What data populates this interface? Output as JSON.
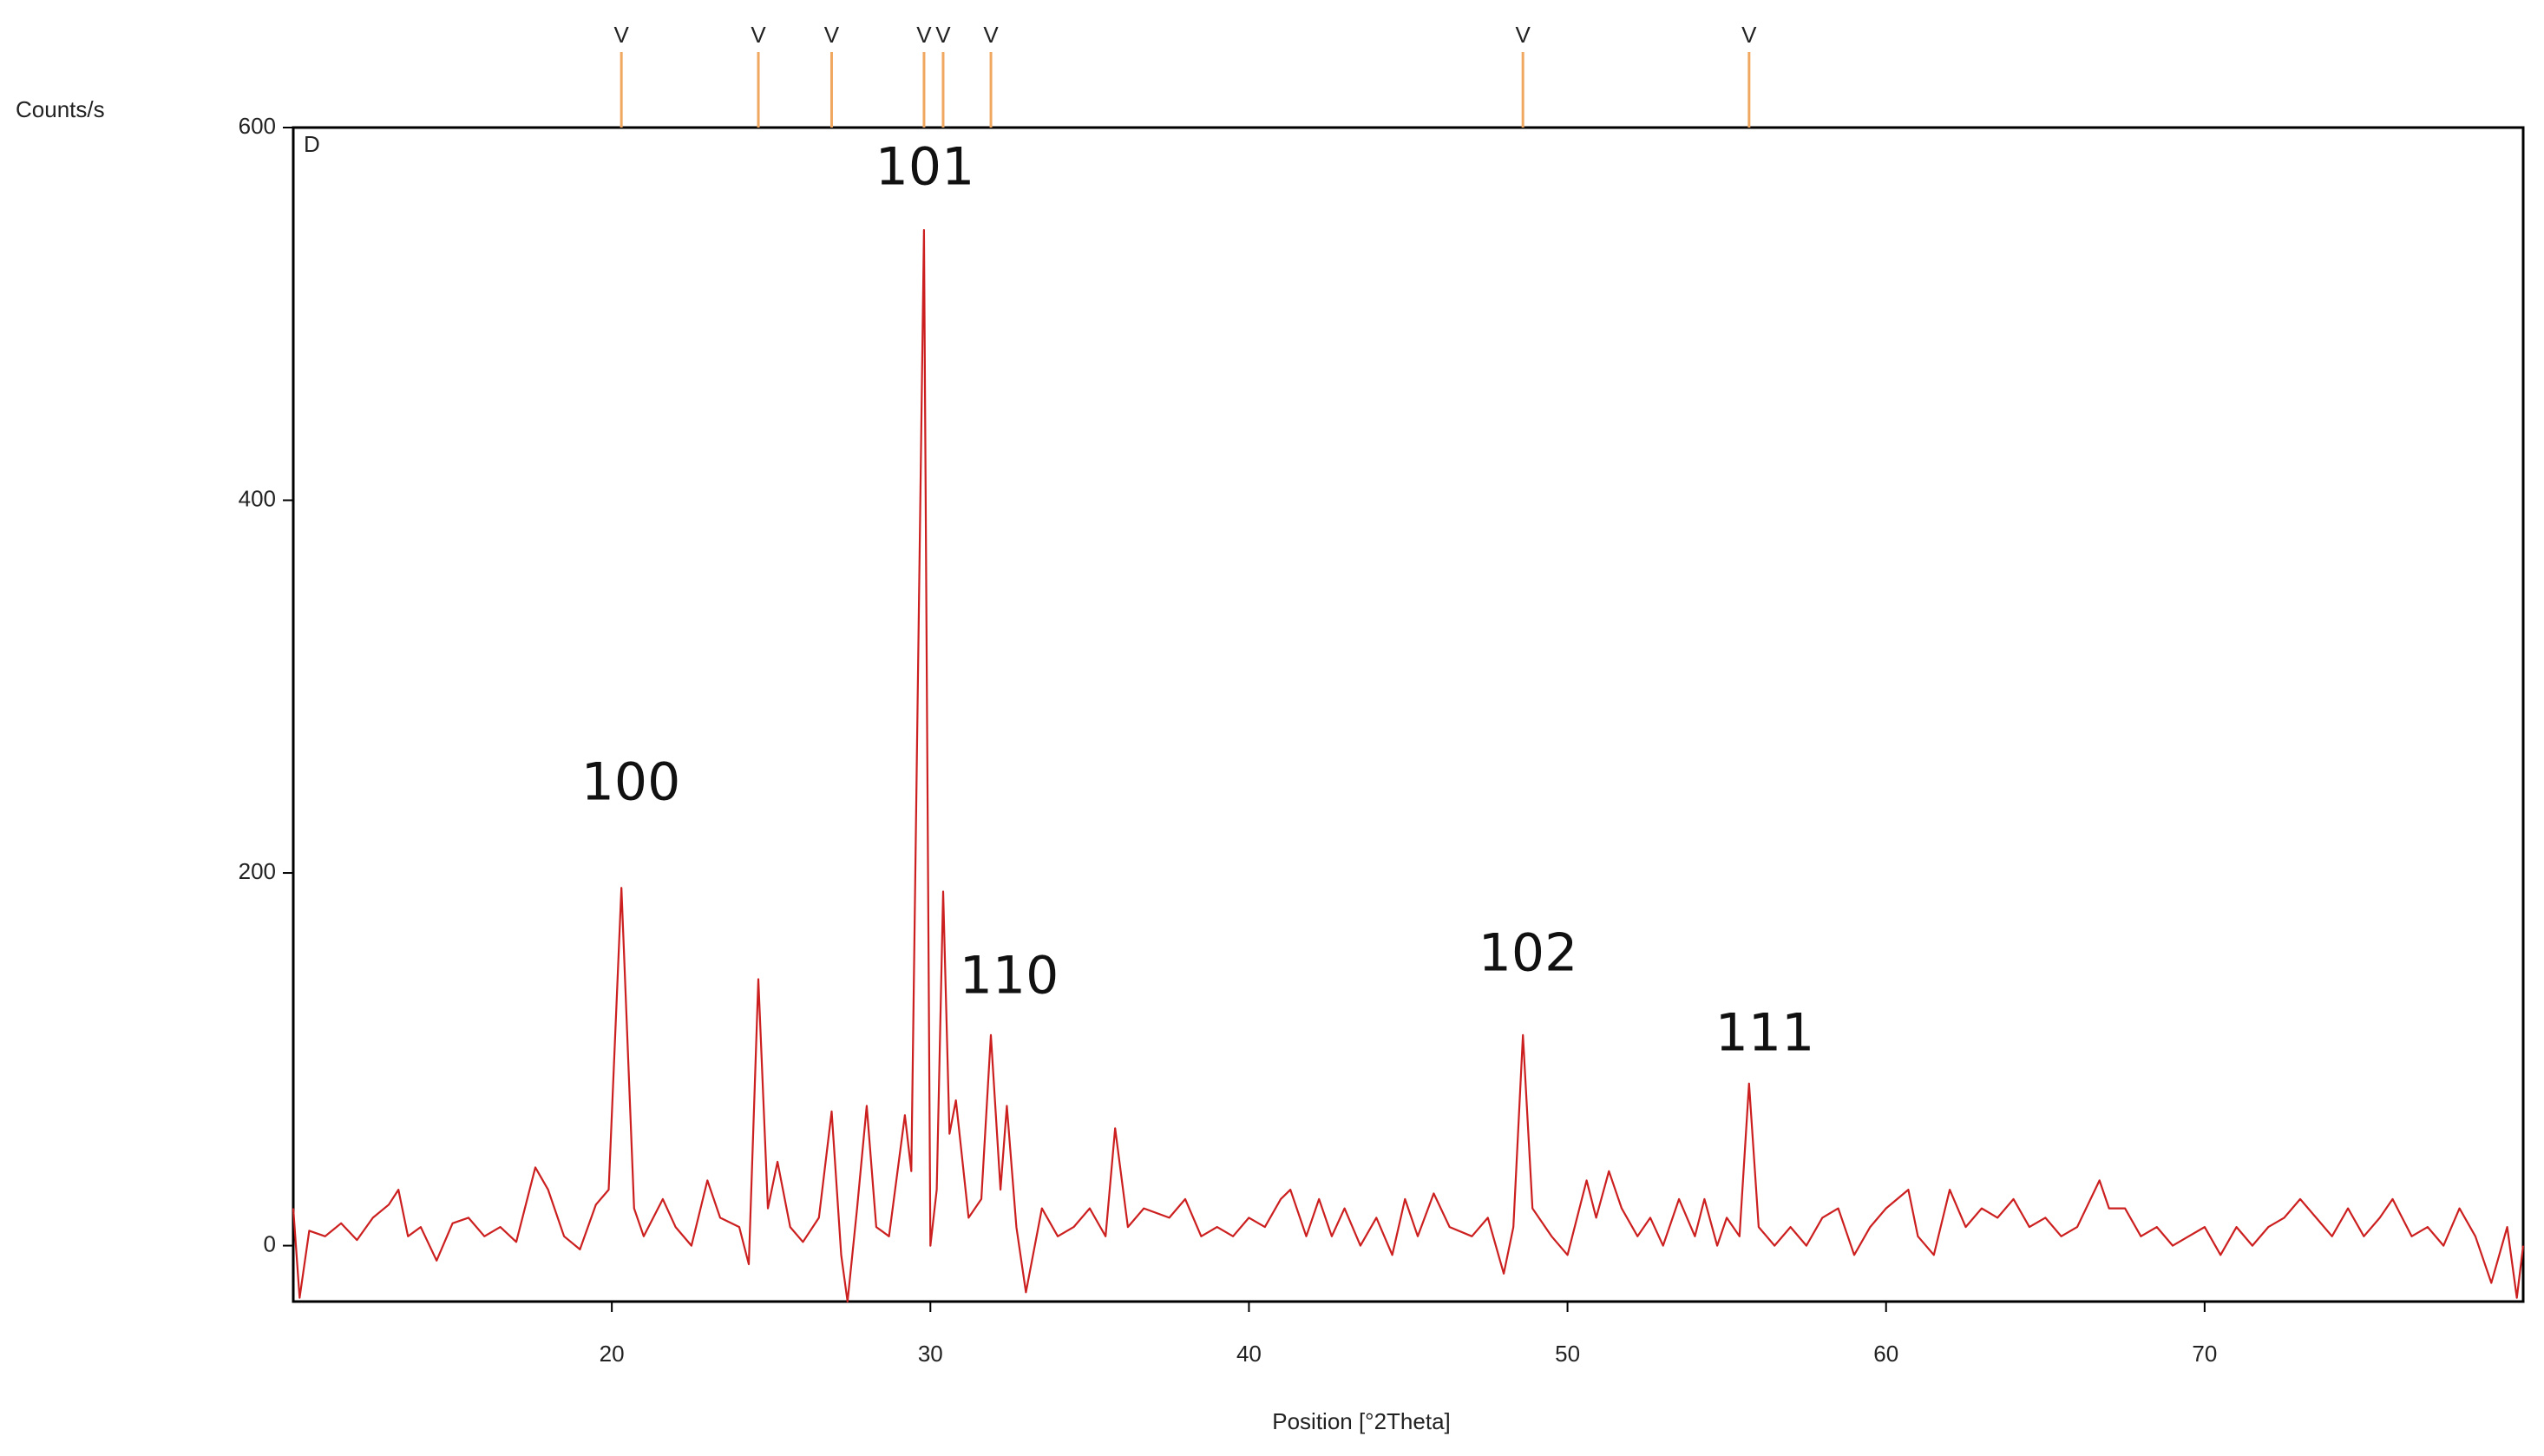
{
  "chart_data": {
    "type": "line",
    "ylabel": "Counts/s",
    "xlabel": "Position [°2Theta]",
    "panel_label": "D",
    "xlim": [
      10,
      80
    ],
    "ylim": [
      -30,
      600
    ],
    "xticks": [
      20,
      30,
      40,
      50,
      60,
      70
    ],
    "yticks": [
      0,
      200,
      400,
      600
    ],
    "reference_label": "V",
    "reference_color": "#f0a860",
    "reference_peaks": [
      20.3,
      24.6,
      26.9,
      29.8,
      30.4,
      31.9,
      48.6,
      55.7
    ],
    "annotations": [
      "100",
      "101",
      "110",
      "102",
      "111"
    ],
    "x": [
      10.0,
      10.2,
      10.5,
      11.0,
      11.5,
      12.0,
      12.5,
      13.0,
      13.3,
      13.6,
      14.0,
      14.5,
      15.0,
      15.5,
      16.0,
      16.5,
      17.0,
      17.6,
      18.0,
      18.5,
      19.0,
      19.5,
      19.9,
      20.3,
      20.7,
      21.0,
      21.6,
      22.0,
      22.5,
      23.0,
      23.4,
      24.0,
      24.3,
      24.6,
      24.9,
      25.2,
      25.6,
      26.0,
      26.5,
      26.9,
      27.2,
      27.4,
      27.7,
      28.0,
      28.3,
      28.7,
      29.2,
      29.4,
      29.8,
      30.0,
      30.2,
      30.4,
      30.6,
      30.8,
      31.2,
      31.6,
      31.9,
      32.2,
      32.4,
      32.7,
      33.0,
      33.5,
      34.0,
      34.5,
      35.0,
      35.5,
      35.8,
      36.2,
      36.7,
      37.5,
      38.0,
      38.5,
      39.0,
      39.5,
      40.0,
      40.5,
      41.0,
      41.3,
      41.8,
      42.2,
      42.6,
      43.0,
      43.5,
      44.0,
      44.5,
      44.9,
      45.3,
      45.8,
      46.3,
      47.0,
      47.5,
      48.0,
      48.3,
      48.6,
      48.9,
      49.5,
      50.0,
      50.6,
      50.9,
      51.3,
      51.7,
      52.2,
      52.6,
      53.0,
      53.5,
      54.0,
      54.3,
      54.7,
      55.0,
      55.4,
      55.7,
      56.0,
      56.5,
      57.0,
      57.5,
      58.0,
      58.5,
      59.0,
      59.5,
      60.0,
      60.7,
      61.0,
      61.5,
      62.0,
      62.5,
      63.0,
      63.5,
      64.0,
      64.5,
      65.0,
      65.5,
      66.0,
      66.7,
      67.0,
      67.5,
      68.0,
      68.5,
      69.0,
      69.5,
      70.0,
      70.5,
      71.0,
      71.5,
      72.0,
      72.5,
      73.0,
      73.5,
      74.0,
      74.5,
      75.0,
      75.5,
      75.9,
      76.5,
      77.0,
      77.5,
      78.0,
      78.5,
      79.0,
      79.5,
      79.8,
      80.0
    ],
    "series": [
      {
        "color": "#cc1f1f",
        "values": [
          20,
          -28,
          8,
          5,
          12,
          3,
          15,
          22,
          30,
          5,
          10,
          -8,
          12,
          15,
          5,
          10,
          2,
          42,
          30,
          5,
          -2,
          22,
          30,
          192,
          20,
          5,
          25,
          10,
          0,
          35,
          15,
          10,
          -10,
          143,
          20,
          45,
          10,
          2,
          15,
          72,
          -5,
          -30,
          20,
          75,
          10,
          5,
          70,
          40,
          545,
          0,
          30,
          190,
          60,
          78,
          15,
          25,
          113,
          30,
          75,
          10,
          -25,
          20,
          5,
          10,
          20,
          5,
          63,
          10,
          20,
          15,
          25,
          5,
          10,
          5,
          15,
          10,
          25,
          30,
          5,
          25,
          5,
          20,
          0,
          15,
          -5,
          25,
          5,
          28,
          10,
          5,
          15,
          -15,
          10,
          113,
          20,
          5,
          -5,
          35,
          15,
          40,
          20,
          5,
          15,
          0,
          25,
          5,
          25,
          0,
          15,
          5,
          87,
          10,
          0,
          10,
          0,
          15,
          20,
          -5,
          10,
          20,
          30,
          5,
          -5,
          30,
          10,
          20,
          15,
          25,
          10,
          15,
          5,
          10,
          35,
          20,
          20,
          5,
          10,
          0,
          5,
          10,
          -5,
          10,
          0,
          10,
          15,
          25,
          15,
          5,
          20,
          5,
          15,
          25,
          5,
          10,
          0,
          20,
          5,
          -20,
          10,
          -28,
          0
        ]
      }
    ]
  }
}
